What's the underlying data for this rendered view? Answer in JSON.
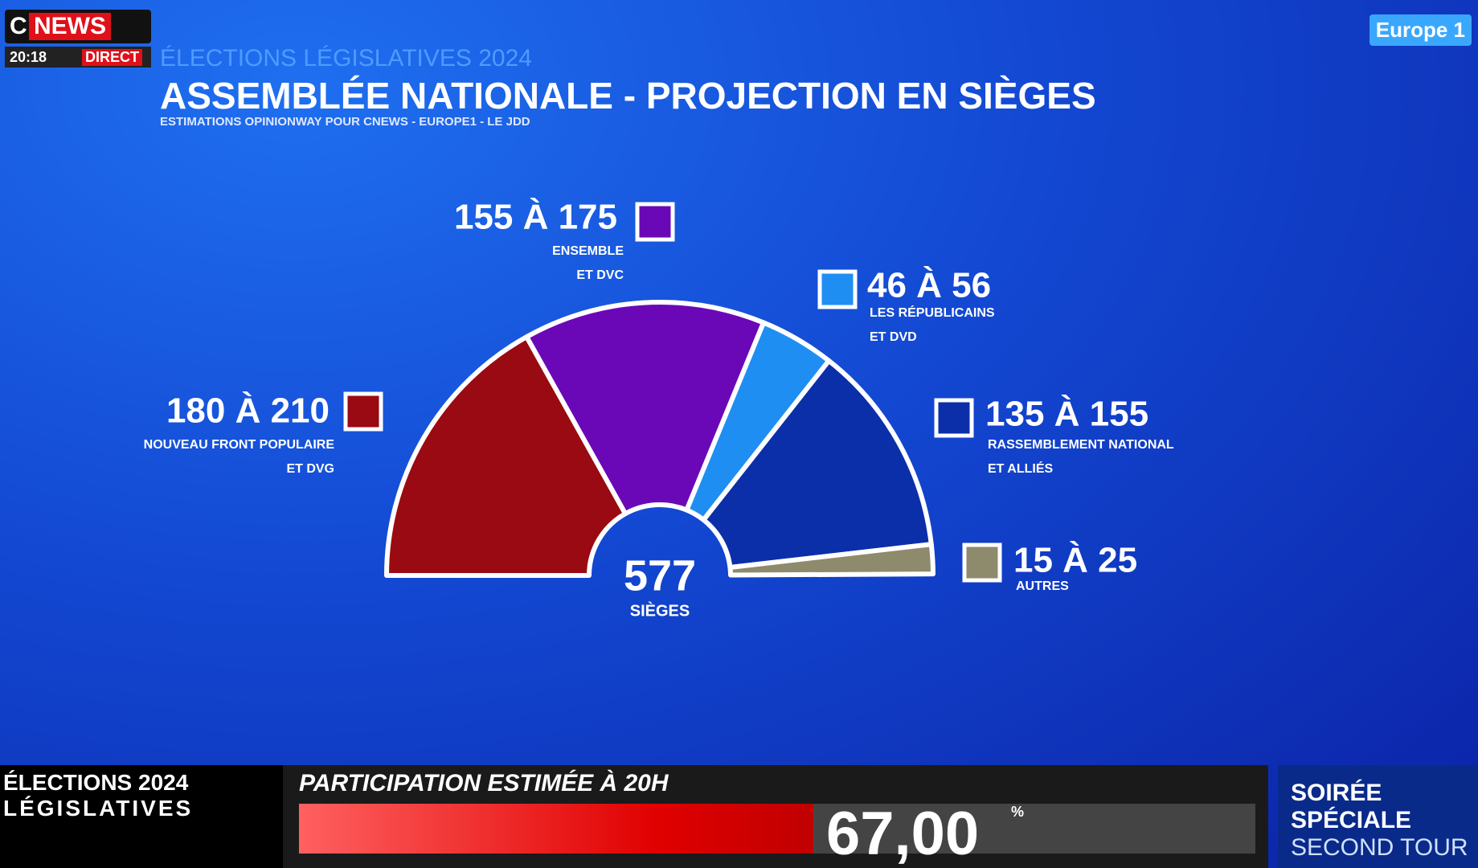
{
  "logo": {
    "c": "C",
    "news": "NEWS",
    "time": "20:18",
    "live": "DIRECT",
    "partner": "Europe 1"
  },
  "chart_data": {
    "type": "hemicycle",
    "overline": "ÉLECTIONS LÉGISLATIVES 2024",
    "title": "ASSEMBLÉE NATIONALE - PROJECTION EN SIÈGES",
    "subtitle": "ESTIMATIONS OPINIONWAY POUR CNEWS - EUROPE1 - LE JDD",
    "total": 577,
    "total_label": "SIÈGES",
    "series": [
      {
        "low": 180,
        "high": 210,
        "value_label": "180 À 210",
        "name": "NOUVEAU FRONT POPULAIRE",
        "name2": "ET DVG",
        "color": "#9a0a12"
      },
      {
        "low": 155,
        "high": 175,
        "value_label": "155 À 175",
        "name": "ENSEMBLE",
        "name2": "ET DVC",
        "color": "#6a08b8"
      },
      {
        "low": 46,
        "high": 56,
        "value_label": "46 À 56",
        "name": "LES RÉPUBLICAINS",
        "name2": "ET DVD",
        "color": "#1f8ef2"
      },
      {
        "low": 135,
        "high": 155,
        "value_label": "135 À 155",
        "name": "RASSEMBLEMENT NATIONAL",
        "name2": "ET ALLIÉS",
        "color": "#0a2fa8"
      },
      {
        "low": 15,
        "high": 25,
        "value_label": "15 À 25",
        "name": "AUTRES",
        "color": "#8e8a6c"
      }
    ]
  },
  "ticker": {
    "left": [
      "ÉLECTIONS 2024",
      "LÉGISLATIVES"
    ],
    "headline": "PARTICIPATION ESTIMÉE À 20H",
    "value": "67,00",
    "unit": "%",
    "right": [
      "SOIRÉE",
      "SPÉCIALE",
      "SECOND TOUR"
    ]
  }
}
